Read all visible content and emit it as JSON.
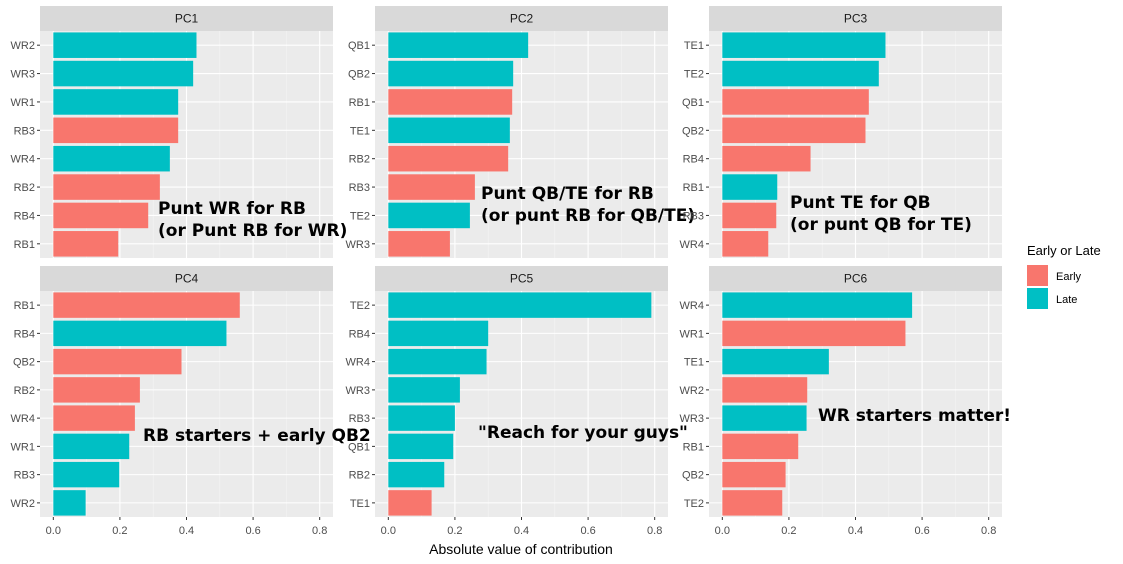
{
  "chart_data": {
    "type": "bar",
    "orientation": "horizontal",
    "xlabel": "Absolute value of contribution",
    "xlim": [
      -0.04,
      0.84
    ],
    "xticks": [
      0.0,
      0.2,
      0.4,
      0.6,
      0.8
    ],
    "xtick_labels": [
      "0.0",
      "0.2",
      "0.4",
      "0.6",
      "0.8"
    ],
    "grid": true,
    "legend": {
      "title": "Early or Late",
      "placement": "right",
      "entries": [
        {
          "label": "Early",
          "color": "#F8766D"
        },
        {
          "label": "Late",
          "color": "#00BFC4"
        }
      ]
    },
    "colors": {
      "Early": "#F8766D",
      "Late": "#00BFC4"
    },
    "panels": [
      {
        "title": "PC1",
        "annotation": [
          "Punt WR for RB",
          "(or Punt RB for WR)"
        ],
        "bars": [
          {
            "label": "WR2",
            "value": 0.43,
            "group": "Late"
          },
          {
            "label": "WR3",
            "value": 0.42,
            "group": "Late"
          },
          {
            "label": "WR1",
            "value": 0.375,
            "group": "Late"
          },
          {
            "label": "RB3",
            "value": 0.375,
            "group": "Early"
          },
          {
            "label": "WR4",
            "value": 0.35,
            "group": "Late"
          },
          {
            "label": "RB2",
            "value": 0.32,
            "group": "Early"
          },
          {
            "label": "RB4",
            "value": 0.285,
            "group": "Early"
          },
          {
            "label": "RB1",
            "value": 0.195,
            "group": "Early"
          }
        ]
      },
      {
        "title": "PC2",
        "annotation": [
          "Punt QB/TE for RB",
          "(or punt RB for QB/TE)"
        ],
        "bars": [
          {
            "label": "QB1",
            "value": 0.42,
            "group": "Late"
          },
          {
            "label": "QB2",
            "value": 0.375,
            "group": "Late"
          },
          {
            "label": "RB1",
            "value": 0.372,
            "group": "Early"
          },
          {
            "label": "TE1",
            "value": 0.365,
            "group": "Late"
          },
          {
            "label": "RB2",
            "value": 0.36,
            "group": "Early"
          },
          {
            "label": "RB3",
            "value": 0.26,
            "group": "Early"
          },
          {
            "label": "TE2",
            "value": 0.245,
            "group": "Late"
          },
          {
            "label": "WR3",
            "value": 0.185,
            "group": "Early"
          }
        ]
      },
      {
        "title": "PC3",
        "annotation": [
          "Punt TE for QB",
          "(or punt QB for TE)"
        ],
        "bars": [
          {
            "label": "TE1",
            "value": 0.49,
            "group": "Late"
          },
          {
            "label": "TE2",
            "value": 0.47,
            "group": "Late"
          },
          {
            "label": "QB1",
            "value": 0.44,
            "group": "Early"
          },
          {
            "label": "QB2",
            "value": 0.43,
            "group": "Early"
          },
          {
            "label": "RB4",
            "value": 0.265,
            "group": "Early"
          },
          {
            "label": "RB1",
            "value": 0.165,
            "group": "Late"
          },
          {
            "label": "RB3",
            "value": 0.162,
            "group": "Early"
          },
          {
            "label": "WR4",
            "value": 0.138,
            "group": "Early"
          }
        ]
      },
      {
        "title": "PC4",
        "annotation": [
          "RB starters + early QB2"
        ],
        "bars": [
          {
            "label": "RB1",
            "value": 0.56,
            "group": "Early"
          },
          {
            "label": "RB4",
            "value": 0.52,
            "group": "Late"
          },
          {
            "label": "QB2",
            "value": 0.385,
            "group": "Early"
          },
          {
            "label": "RB2",
            "value": 0.26,
            "group": "Early"
          },
          {
            "label": "WR4",
            "value": 0.245,
            "group": "Early"
          },
          {
            "label": "WR1",
            "value": 0.228,
            "group": "Late"
          },
          {
            "label": "RB3",
            "value": 0.198,
            "group": "Late"
          },
          {
            "label": "WR2",
            "value": 0.097,
            "group": "Late"
          }
        ]
      },
      {
        "title": "PC5",
        "annotation": [
          "\"Reach for your guys\""
        ],
        "bars": [
          {
            "label": "TE2",
            "value": 0.79,
            "group": "Late"
          },
          {
            "label": "RB4",
            "value": 0.3,
            "group": "Late"
          },
          {
            "label": "WR4",
            "value": 0.295,
            "group": "Late"
          },
          {
            "label": "WR3",
            "value": 0.215,
            "group": "Late"
          },
          {
            "label": "RB3",
            "value": 0.2,
            "group": "Late"
          },
          {
            "label": "QB1",
            "value": 0.195,
            "group": "Late"
          },
          {
            "label": "RB2",
            "value": 0.168,
            "group": "Late"
          },
          {
            "label": "TE1",
            "value": 0.13,
            "group": "Early"
          }
        ]
      },
      {
        "title": "PC6",
        "annotation": [
          "WR starters matter!"
        ],
        "bars": [
          {
            "label": "WR4",
            "value": 0.57,
            "group": "Late"
          },
          {
            "label": "WR1",
            "value": 0.55,
            "group": "Early"
          },
          {
            "label": "TE1",
            "value": 0.32,
            "group": "Late"
          },
          {
            "label": "WR2",
            "value": 0.255,
            "group": "Early"
          },
          {
            "label": "WR3",
            "value": 0.253,
            "group": "Late"
          },
          {
            "label": "RB1",
            "value": 0.228,
            "group": "Early"
          },
          {
            "label": "QB2",
            "value": 0.19,
            "group": "Early"
          },
          {
            "label": "TE2",
            "value": 0.18,
            "group": "Early"
          }
        ]
      }
    ]
  }
}
